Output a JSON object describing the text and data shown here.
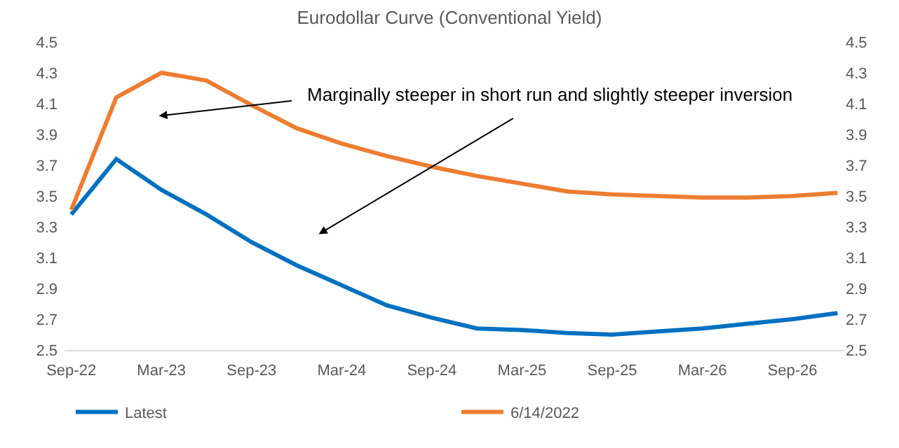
{
  "chart_data": {
    "type": "line",
    "title": "Eurodollar Curve (Conventional Yield)",
    "categories": [
      "Sep-22",
      null,
      "Mar-23",
      null,
      "Sep-23",
      null,
      "Mar-24",
      null,
      "Sep-24",
      null,
      "Mar-25",
      null,
      "Sep-25",
      null,
      "Mar-26",
      null,
      "Sep-26",
      null
    ],
    "series": [
      {
        "name": "Latest",
        "color": "#0070c0",
        "values": [
          3.38,
          3.74,
          3.54,
          3.38,
          3.2,
          3.05,
          2.92,
          2.79,
          2.71,
          2.64,
          2.63,
          2.61,
          2.6,
          2.62,
          2.64,
          2.67,
          2.7,
          2.74
        ]
      },
      {
        "name": "6/14/2022",
        "color": "#ed7d31",
        "values": [
          3.41,
          4.14,
          4.3,
          4.25,
          4.09,
          3.94,
          3.84,
          3.76,
          3.69,
          3.63,
          3.58,
          3.53,
          3.51,
          3.5,
          3.49,
          3.49,
          3.5,
          3.52
        ]
      }
    ],
    "ylim": [
      2.5,
      4.5
    ],
    "yticks": [
      2.5,
      2.7,
      2.9,
      3.1,
      3.3,
      3.5,
      3.7,
      3.9,
      4.1,
      4.3,
      4.5
    ],
    "y2lim": [
      2.5,
      4.5
    ],
    "y2ticks": [
      2.5,
      2.7,
      2.9,
      3.1,
      3.3,
      3.5,
      3.7,
      3.9,
      4.1,
      4.3,
      4.5
    ],
    "annotations": [
      "Marginally steeper in short run and slightly steeper inversion"
    ],
    "legend": "bottom",
    "marker": "none",
    "line_style": "solid"
  }
}
